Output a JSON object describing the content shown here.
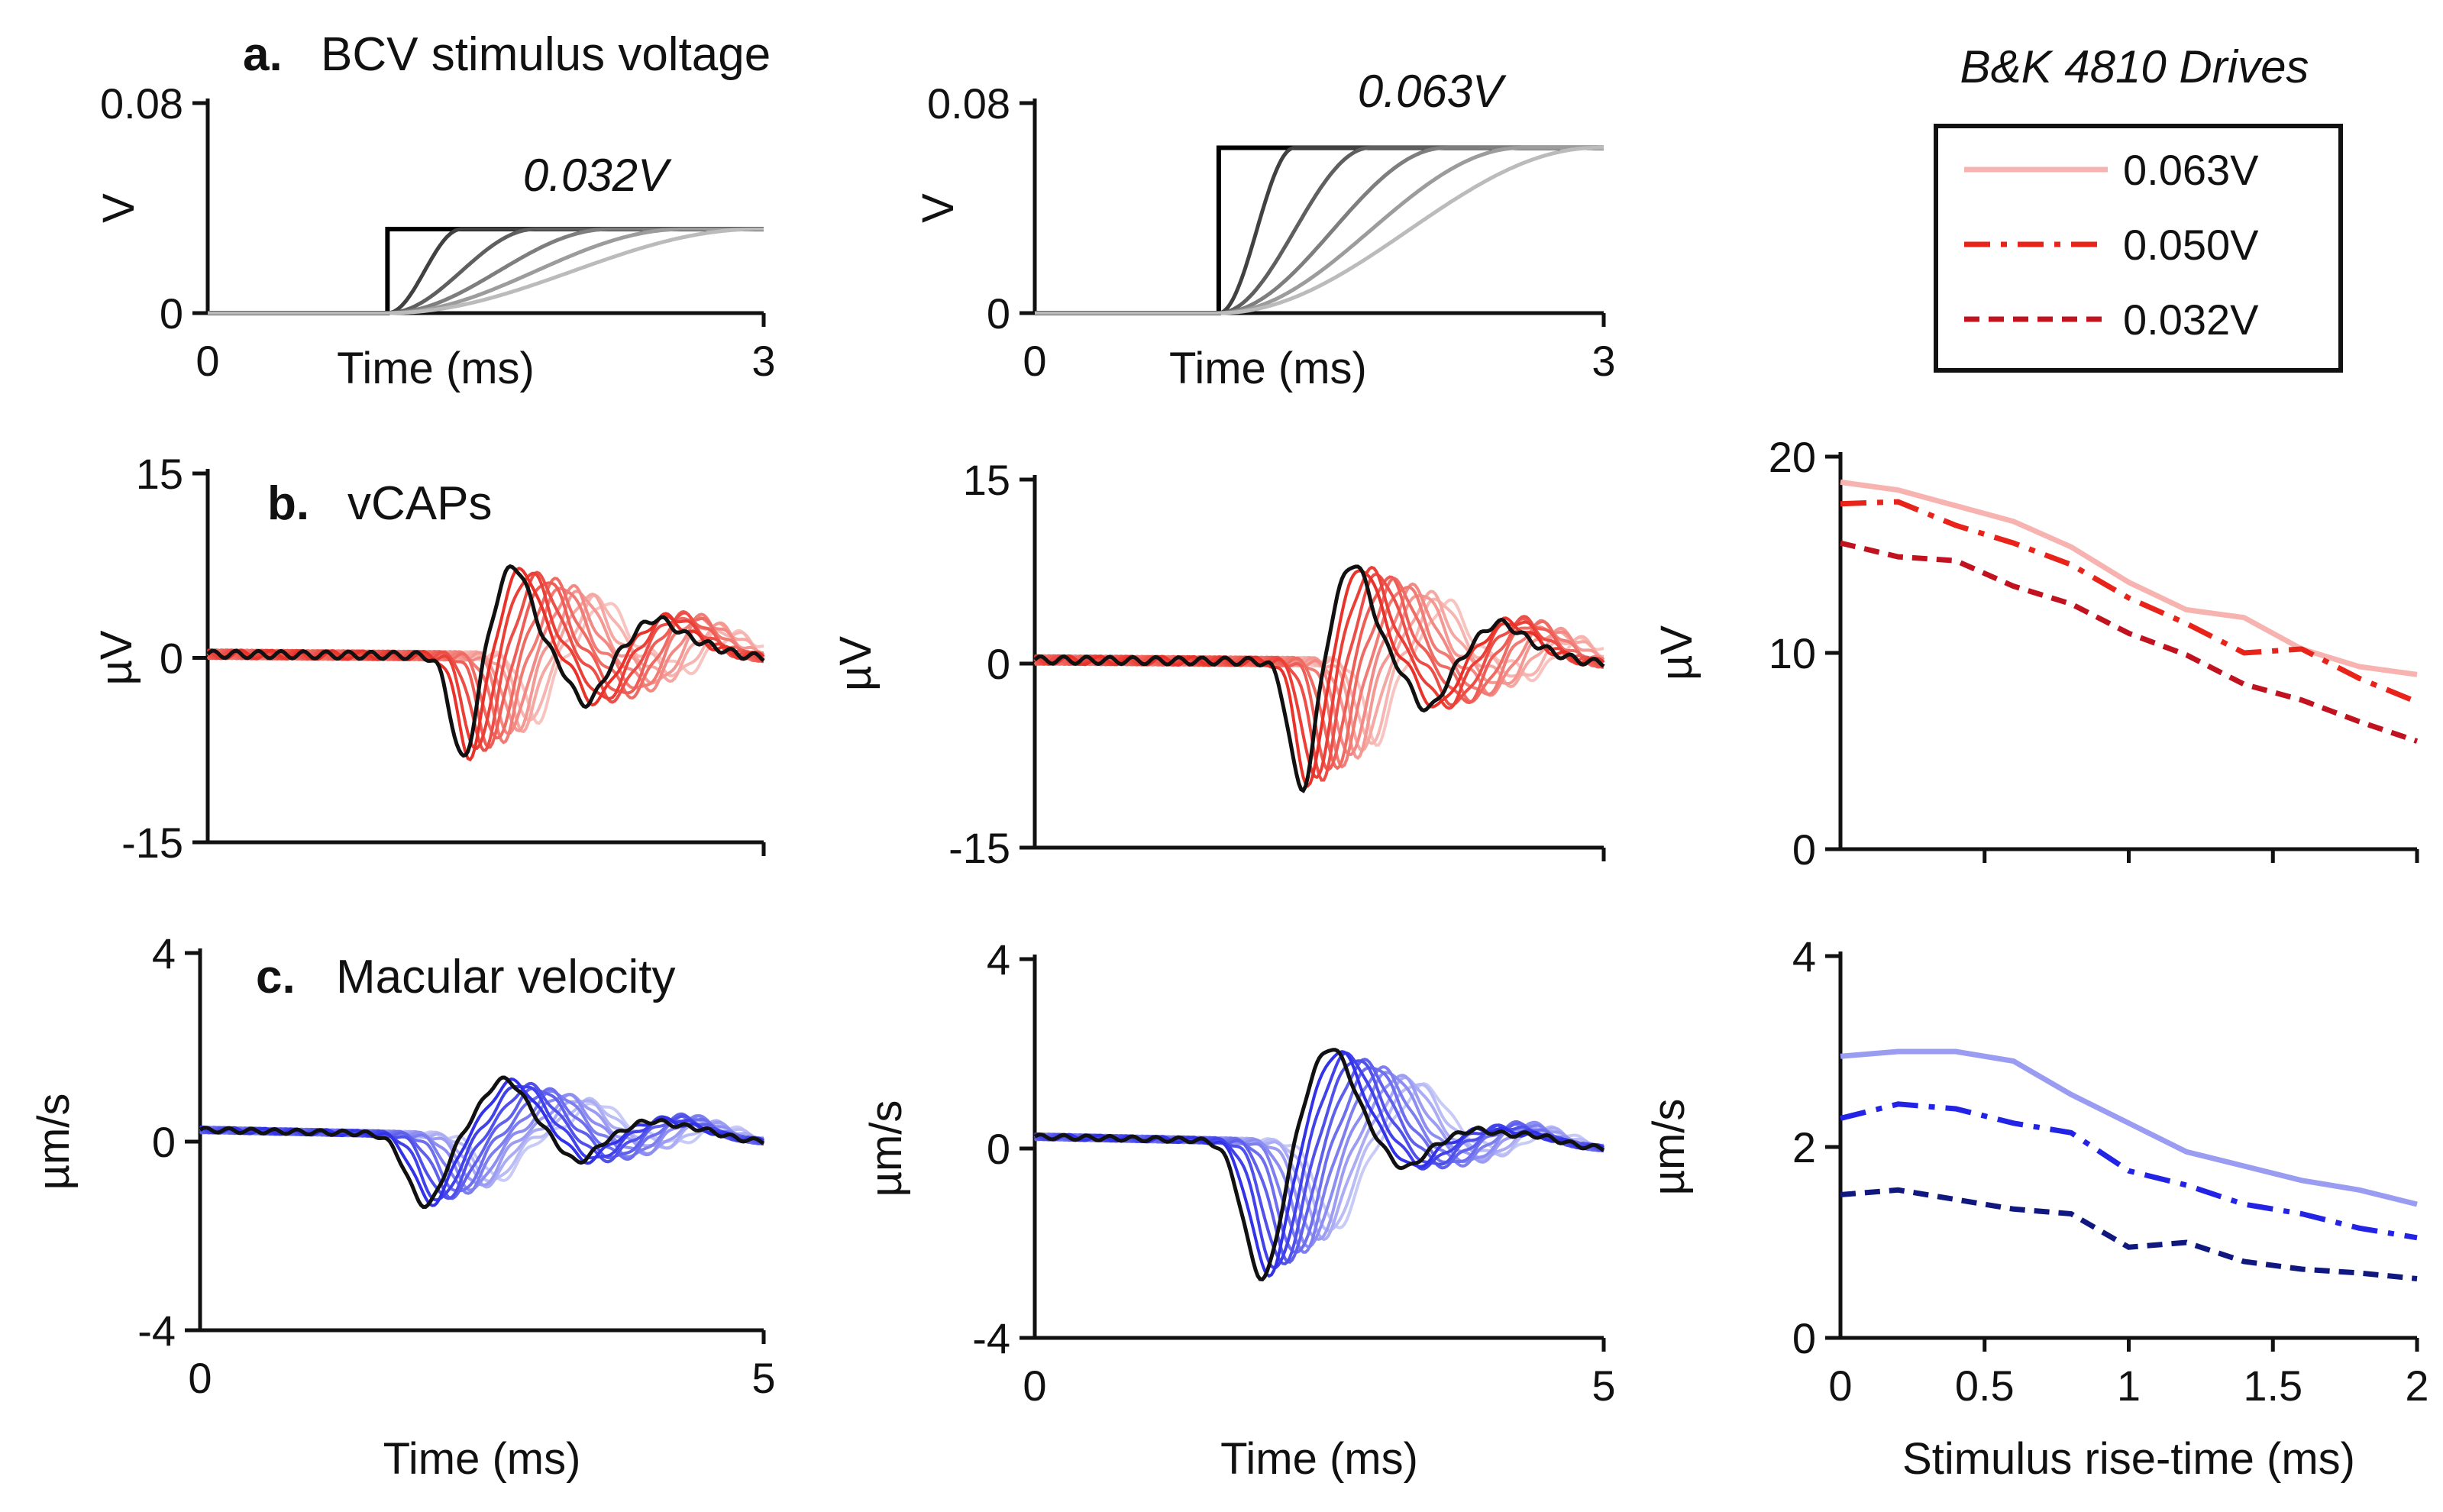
{
  "chart_data": [
    {
      "id": "a1",
      "type": "line",
      "panel_letter": "a.",
      "title": "BCV stimulus voltage",
      "ylabel": "V",
      "xlabel": "Time (ms)",
      "xlim": [
        0,
        3
      ],
      "ylim": [
        0,
        0.08
      ],
      "xticks": [
        "0",
        "3"
      ],
      "yticks": [
        "0.08",
        "0"
      ],
      "annotation": "0.032V",
      "step_time_ms": 0.97,
      "amplitude_V": 0.032,
      "rise_times_ms": [
        0,
        0.4,
        0.8,
        1.2,
        1.6,
        2.0
      ]
    },
    {
      "id": "a2",
      "type": "line",
      "ylabel": "V",
      "xlabel": "Time (ms)",
      "xlim": [
        0,
        3
      ],
      "ylim": [
        0,
        0.08
      ],
      "xticks": [
        "0",
        "3"
      ],
      "yticks": [
        "0.08",
        "0"
      ],
      "annotation": "0.063V",
      "step_time_ms": 0.97,
      "amplitude_V": 0.063,
      "rise_times_ms": [
        0,
        0.4,
        0.8,
        1.2,
        1.6,
        2.0
      ]
    },
    {
      "id": "b1",
      "type": "line",
      "panel_letter": "b.",
      "title": "vCAPs",
      "ylabel": "µV",
      "xlim": [
        0,
        5
      ],
      "ylim": [
        -15,
        15
      ],
      "yticks": [
        "15",
        "0",
        "-15"
      ],
      "series_count": 12,
      "black_trace": {
        "trough_ms": 2.3,
        "trough_uV": -8.5,
        "peak_ms": 2.75,
        "peak_uV": 7.3
      },
      "delay_step_ms": 0.06
    },
    {
      "id": "b2",
      "type": "line",
      "ylabel": "µV",
      "xlim": [
        0,
        5
      ],
      "ylim": [
        -15,
        15
      ],
      "yticks": [
        "15",
        "0",
        "-15"
      ],
      "series_count": 12,
      "black_trace": {
        "trough_ms": 2.35,
        "trough_uV": -10.5,
        "peak_ms": 2.8,
        "peak_uV": 8.0
      },
      "delay_step_ms": 0.06
    },
    {
      "id": "c1",
      "type": "line",
      "panel_letter": "c.",
      "title": "Macular velocity",
      "ylabel": "µm/s",
      "xlabel": "Time (ms)",
      "xlim": [
        0,
        5
      ],
      "ylim": [
        -4,
        4
      ],
      "xticks": [
        "0",
        "5"
      ],
      "yticks": [
        "4",
        "0",
        "-4"
      ],
      "series_count": 12,
      "black_trace": {
        "trough_ms": 2.0,
        "trough_ums": -1.5,
        "peak_ms": 2.7,
        "peak_ums": 1.2
      },
      "delay_step_ms": 0.06
    },
    {
      "id": "c2",
      "type": "line",
      "ylabel": "µm/s",
      "xlabel": "Time (ms)",
      "xlim": [
        0,
        5
      ],
      "ylim": [
        -4,
        4
      ],
      "xticks": [
        "0",
        "5"
      ],
      "yticks": [
        "4",
        "0",
        "-4"
      ],
      "series_count": 12,
      "black_trace": {
        "trough_ms": 2.0,
        "trough_ums": -2.9,
        "peak_ms": 2.6,
        "peak_ums": 2.0
      },
      "delay_step_ms": 0.06
    },
    {
      "id": "b3",
      "type": "line",
      "ylabel": "µV",
      "xlim": [
        0,
        2
      ],
      "ylim": [
        0,
        20
      ],
      "yticks": [
        "20",
        "10",
        "0"
      ],
      "x": [
        0,
        0.2,
        0.4,
        0.6,
        0.8,
        1.0,
        1.2,
        1.4,
        1.6,
        1.8,
        2.0
      ],
      "series": [
        {
          "name": "0.063V",
          "style": "solid",
          "values": [
            18.7,
            18.3,
            17.5,
            16.7,
            15.4,
            13.6,
            12.2,
            11.8,
            10.2,
            9.3,
            8.9
          ]
        },
        {
          "name": "0.050V",
          "style": "dashdot",
          "values": [
            17.6,
            17.7,
            16.5,
            15.6,
            14.5,
            12.8,
            11.5,
            10.0,
            10.2,
            8.7,
            7.5
          ]
        },
        {
          "name": "0.032V",
          "style": "dashed",
          "values": [
            15.6,
            14.9,
            14.7,
            13.4,
            12.5,
            11.0,
            9.9,
            8.4,
            7.6,
            6.5,
            5.5
          ]
        }
      ]
    },
    {
      "id": "c3",
      "type": "line",
      "ylabel": "µm/s",
      "xlabel": "Stimulus rise-time (ms)",
      "xlim": [
        0,
        2
      ],
      "ylim": [
        0,
        4
      ],
      "xticks": [
        "0",
        "0.5",
        "1",
        "1.5",
        "2"
      ],
      "yticks": [
        "4",
        "2",
        "0"
      ],
      "x": [
        0,
        0.2,
        0.4,
        0.6,
        0.8,
        1.0,
        1.2,
        1.4,
        1.6,
        1.8,
        2.0
      ],
      "series": [
        {
          "name": "0.063V",
          "style": "solid",
          "values": [
            2.95,
            3.0,
            3.0,
            2.9,
            2.55,
            2.25,
            1.95,
            1.8,
            1.65,
            1.55,
            1.4
          ]
        },
        {
          "name": "0.050V",
          "style": "dashdot",
          "values": [
            2.3,
            2.45,
            2.4,
            2.25,
            2.15,
            1.75,
            1.6,
            1.4,
            1.3,
            1.15,
            1.05
          ]
        },
        {
          "name": "0.032V",
          "style": "dashed",
          "values": [
            1.5,
            1.55,
            1.45,
            1.35,
            1.3,
            0.95,
            1.0,
            0.8,
            0.72,
            0.68,
            0.62
          ]
        }
      ]
    }
  ],
  "legend": {
    "title": "B&K 4810 Drives",
    "items": [
      "0.063V",
      "0.050V",
      "0.032V"
    ]
  },
  "colors": {
    "axis": "#111111",
    "red_light": "#f7b3b0",
    "red_mid": "#e8231a",
    "red_dark": "#c1121f",
    "blue_light": "#9a9cf2",
    "blue_mid": "#2323e6",
    "blue_dark": "#101880"
  }
}
